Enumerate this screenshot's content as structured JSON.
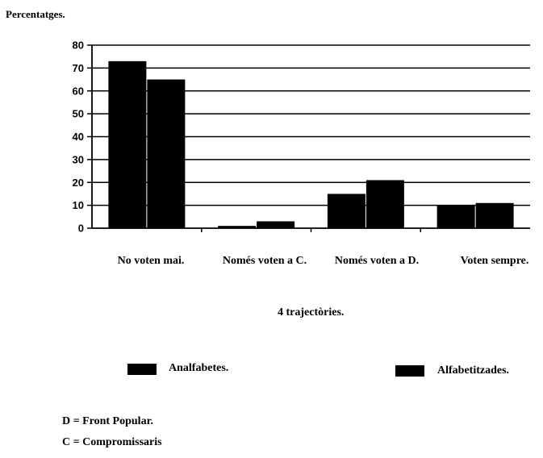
{
  "chart_data": {
    "type": "bar",
    "ylabel": "Percentatges.",
    "xlabel": "4 trajectòries.",
    "categories": [
      "No voten mai.",
      "Només voten a C.",
      "Només voten a D.",
      "Voten sempre."
    ],
    "series": [
      {
        "name": "Analfabetes.",
        "values": [
          73,
          1,
          15,
          10
        ]
      },
      {
        "name": "Alfabetitzades.",
        "values": [
          65,
          3,
          21,
          11
        ]
      }
    ],
    "ylim": [
      0,
      80
    ],
    "yticks": [
      0,
      10,
      20,
      30,
      40,
      50,
      60,
      70,
      80
    ],
    "grid": true,
    "legend": "bottom",
    "colors": {
      "bar": "#000000",
      "grid": "#000000"
    }
  },
  "notes": [
    {
      "text": "D = Front Popular."
    },
    {
      "text": "C = Compromissaris"
    }
  ]
}
